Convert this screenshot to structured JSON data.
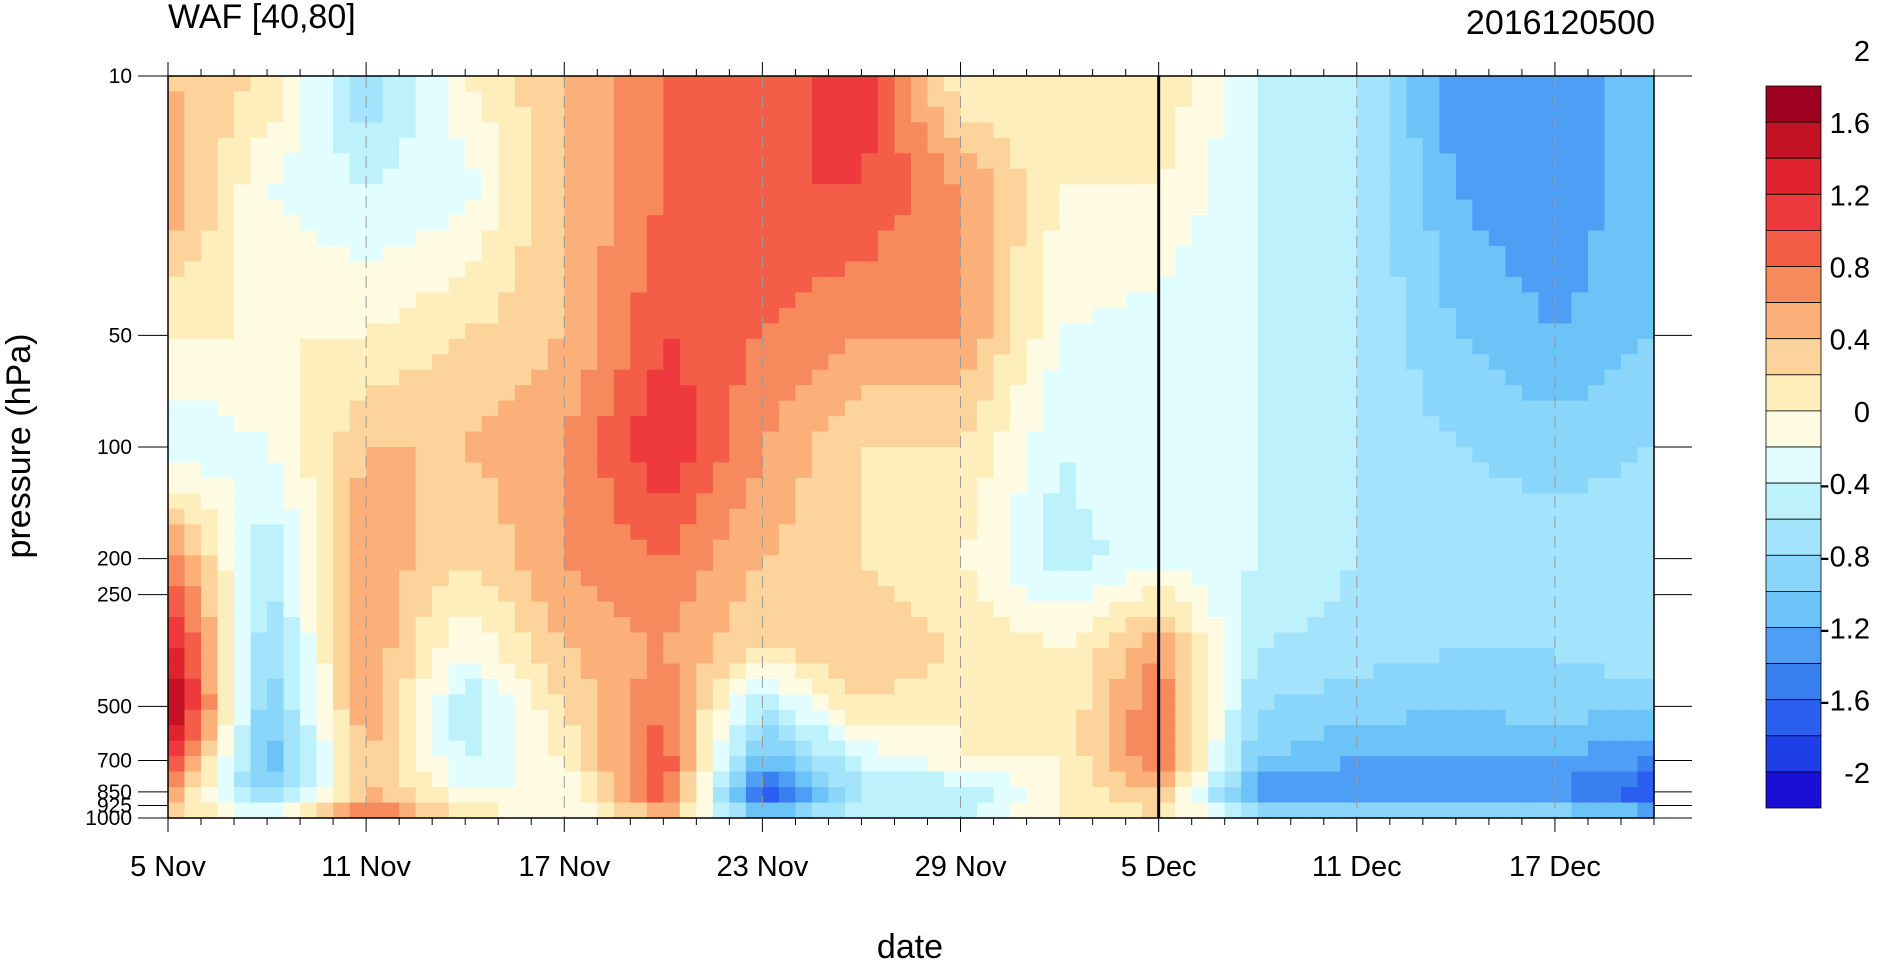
{
  "chart_data": {
    "type": "heatmap",
    "title": "WAF [40,80]",
    "timestamp": "2016120500",
    "xlabel": "date",
    "ylabel": "pressure (hPa)",
    "x_ticks": [
      "5 Nov",
      "11 Nov",
      "17 Nov",
      "23 Nov",
      "29 Nov",
      "5 Dec",
      "11 Dec",
      "17 Dec"
    ],
    "x_range_days": [
      0,
      45
    ],
    "marker_date": "5 Dec",
    "y_ticks": [
      10,
      50,
      100,
      200,
      250,
      500,
      700,
      850,
      925,
      1000
    ],
    "y_tick_labels": [
      "10",
      "50",
      "100",
      "200",
      "250",
      "500",
      "700",
      "850",
      "925",
      "1000"
    ],
    "y_scale": "log",
    "y_inverted": true,
    "ylim": [
      10,
      1000
    ],
    "colorbar": {
      "levels": [
        -2.2,
        -2,
        -1.8,
        -1.6,
        -1.4,
        -1.2,
        -1,
        -0.8,
        -0.6,
        -0.4,
        -0.2,
        0,
        0.2,
        0.4,
        0.6,
        0.8,
        1,
        1.2,
        1.4,
        1.6,
        1.8,
        2,
        2.2
      ],
      "tick_values": [
        2,
        1.6,
        1.2,
        0.8,
        0.4,
        0,
        -0.4,
        -0.8,
        -1.2,
        -1.6,
        -2
      ],
      "tick_labels": [
        "2",
        "1.6",
        "1.2",
        "0.8",
        "0.4",
        "0",
        "-0.4",
        "-0.8",
        "-1.2",
        "-1.6",
        "-2"
      ],
      "colors": [
        "#1a0fd6",
        "#1e3ee8",
        "#2a5ef0",
        "#3a7ff0",
        "#4f9ef5",
        "#6cc3f7",
        "#89d6fa",
        "#a3e3fb",
        "#bdf1fb",
        "#e2fdff",
        "#fffbe3",
        "#fdeebb",
        "#fcd49b",
        "#fbb07a",
        "#f78a5c",
        "#f45d48",
        "#ef3a3d",
        "#e0232f",
        "#c41225",
        "#9e0120"
      ]
    },
    "field_columns_days": [
      0,
      3,
      6,
      9,
      12,
      15,
      18,
      21,
      24,
      27,
      30,
      33,
      36,
      39,
      42,
      45
    ],
    "field_rows_hPa": [
      10,
      20,
      50,
      100,
      200,
      350,
      500,
      700,
      850,
      1000
    ],
    "field_values": [
      [
        0.4,
        0.2,
        -0.8,
        0.0,
        0.4,
        0.8,
        0.8,
        1.2,
        0.0,
        0.0,
        0.2,
        -0.4,
        -0.6,
        -1.4,
        -1.4,
        -1.0
      ],
      [
        0.6,
        -0.2,
        -0.4,
        -0.3,
        0.4,
        0.8,
        1.0,
        1.0,
        0.6,
        0.0,
        0.0,
        -0.4,
        -0.6,
        -1.2,
        -1.4,
        -1.0
      ],
      [
        0.0,
        0.0,
        0.0,
        0.2,
        0.4,
        1.0,
        0.8,
        0.6,
        0.6,
        -0.2,
        -0.3,
        -0.4,
        -0.6,
        -1.0,
        -1.2,
        -1.0
      ],
      [
        -0.4,
        -0.2,
        0.4,
        0.4,
        0.6,
        1.2,
        0.6,
        0.2,
        0.2,
        -0.4,
        -0.2,
        -0.4,
        -0.6,
        -0.8,
        -0.9,
        -0.8
      ],
      [
        0.8,
        -0.6,
        0.6,
        0.2,
        0.6,
        0.8,
        0.4,
        0.2,
        0.0,
        -0.5,
        -0.3,
        -0.4,
        -0.6,
        -0.6,
        -0.7,
        -0.6
      ],
      [
        1.4,
        -0.8,
        0.6,
        -0.2,
        0.4,
        0.6,
        0.2,
        0.4,
        0.2,
        0.0,
        0.6,
        -0.6,
        -0.7,
        -0.8,
        -0.8,
        -0.6
      ],
      [
        1.8,
        -1.0,
        0.6,
        -0.6,
        0.2,
        0.8,
        -0.6,
        0.2,
        0.0,
        0.0,
        0.8,
        -0.8,
        -0.9,
        -1.0,
        -0.9,
        -1.0
      ],
      [
        1.2,
        -1.2,
        0.4,
        -0.4,
        0.0,
        1.0,
        -1.2,
        -0.4,
        0.0,
        0.0,
        0.8,
        -1.0,
        -1.2,
        -1.2,
        -1.2,
        -1.4
      ],
      [
        0.6,
        -1.0,
        0.4,
        -0.2,
        -0.2,
        1.0,
        -1.8,
        -0.6,
        -0.6,
        0.0,
        0.4,
        -1.4,
        -1.4,
        -1.4,
        -1.4,
        -1.8
      ],
      [
        0.2,
        -0.2,
        1.0,
        0.2,
        -0.2,
        0.4,
        -1.0,
        -0.4,
        -0.4,
        0.0,
        0.2,
        -0.6,
        -0.6,
        -0.8,
        -0.8,
        -1.0
      ]
    ]
  }
}
